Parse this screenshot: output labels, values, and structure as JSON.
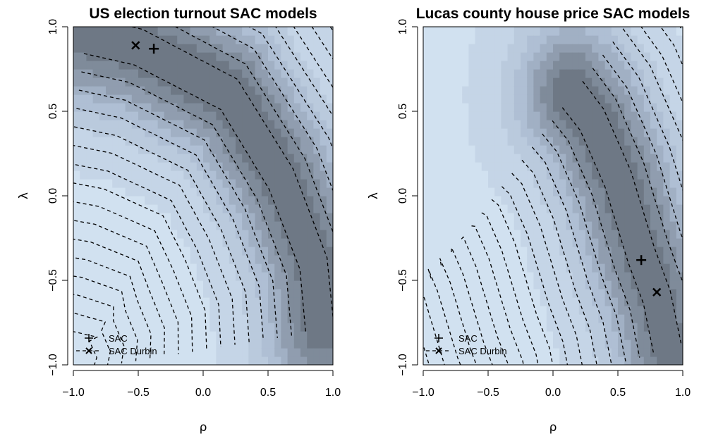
{
  "chart_data": [
    {
      "type": "heatmap",
      "title": "US election turnout SAC models",
      "xlabel": "ρ",
      "ylabel": "λ",
      "xlim": [
        -1.0,
        1.0
      ],
      "ylim": [
        -1.0,
        1.0
      ],
      "x_ticks": [
        "-1.0",
        "-0.5",
        "0.0",
        "0.5",
        "1.0"
      ],
      "y_ticks": [
        "-1.0",
        "-0.5",
        "0.0",
        "0.5",
        "1.0"
      ],
      "surface": {
        "ridge": [
          [
            -0.9,
            0.95
          ],
          [
            -0.5,
            0.88
          ],
          [
            0.2,
            0.6
          ],
          [
            0.6,
            0.1
          ],
          [
            0.85,
            -0.4
          ],
          [
            0.9,
            -0.8
          ]
        ],
        "min_corner": "bottom-left"
      },
      "contour_levels": 16,
      "grid": false,
      "legend_position": "bottom-left",
      "series": [
        {
          "name": "SAC",
          "marker": "+",
          "x": -0.38,
          "y": 0.87
        },
        {
          "name": "SAC Durbin",
          "marker": "x",
          "x": -0.52,
          "y": 0.89
        }
      ],
      "colors": {
        "low": "#dcecfa",
        "mid": "#a9b9cf",
        "high": "#5d6670"
      }
    },
    {
      "type": "heatmap",
      "title": "Lucas county house price SAC models",
      "xlabel": "ρ",
      "ylabel": "λ",
      "xlim": [
        -1.0,
        1.0
      ],
      "ylim": [
        -1.0,
        1.0
      ],
      "x_ticks": [
        "-1.0",
        "-0.5",
        "0.0",
        "0.5",
        "1.0"
      ],
      "y_ticks": [
        "-1.0",
        "-0.5",
        "0.0",
        "0.5",
        "1.0"
      ],
      "surface": {
        "ridge": [
          [
            0.15,
            0.6
          ],
          [
            0.3,
            0.45
          ],
          [
            0.5,
            0.1
          ],
          [
            0.68,
            -0.35
          ],
          [
            0.8,
            -0.6
          ],
          [
            0.88,
            -0.9
          ]
        ],
        "min_corner": "bottom-left"
      },
      "contour_levels": 16,
      "grid": false,
      "legend_position": "bottom-left",
      "series": [
        {
          "name": "SAC",
          "marker": "+",
          "x": 0.68,
          "y": -0.38
        },
        {
          "name": "SAC Durbin",
          "marker": "x",
          "x": 0.8,
          "y": -0.57
        }
      ],
      "colors": {
        "low": "#dcecfa",
        "mid": "#a9b9cf",
        "high": "#5d6670"
      }
    }
  ]
}
